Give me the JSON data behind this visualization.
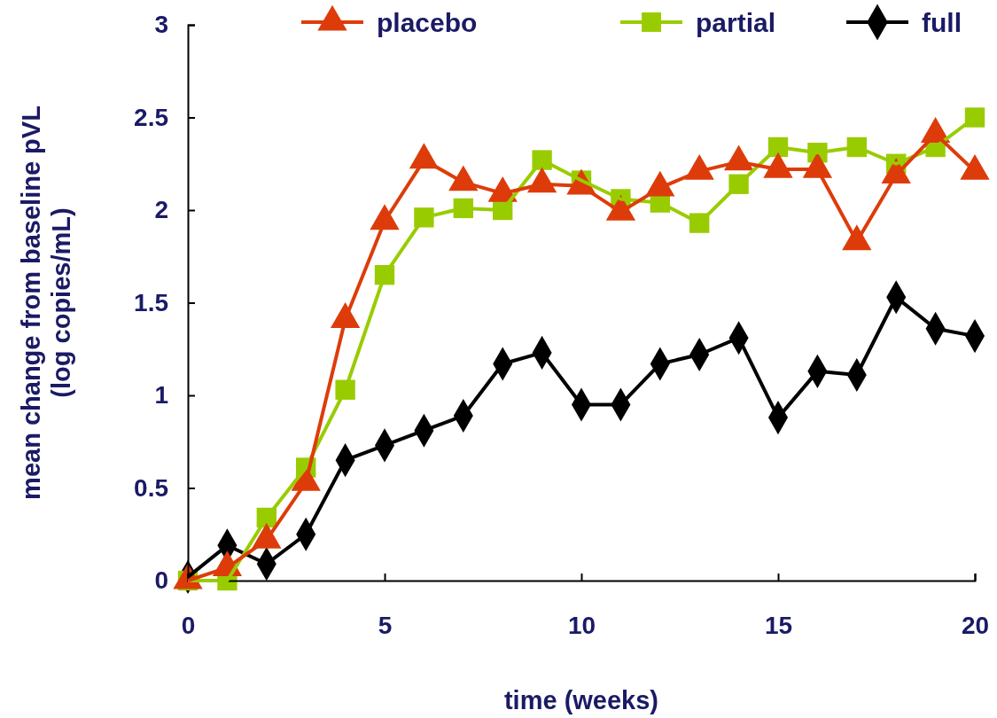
{
  "chart_data": {
    "type": "line",
    "xlabel": "time (weeks)",
    "ylabel": "mean change from baseline pVL\n(log copies/mL)",
    "x": [
      0,
      1,
      2,
      3,
      4,
      5,
      6,
      7,
      8,
      9,
      10,
      11,
      12,
      13,
      14,
      15,
      16,
      17,
      18,
      19,
      20
    ],
    "xlim": [
      0,
      20
    ],
    "xticks": [
      0,
      5,
      10,
      15,
      20
    ],
    "ylim": [
      0,
      3
    ],
    "yticks": [
      0,
      0.5,
      1,
      1.5,
      2,
      2.5,
      3
    ],
    "grid": false,
    "legend": "top",
    "line_style": "solid",
    "series": [
      {
        "name": "placebo",
        "color": "#dd3c0a",
        "marker": "triangle",
        "values": [
          0,
          0.07,
          0.22,
          0.53,
          1.41,
          1.94,
          2.27,
          2.15,
          2.09,
          2.14,
          2.13,
          1.99,
          2.12,
          2.21,
          2.26,
          2.22,
          2.22,
          1.83,
          2.19,
          2.41,
          2.21
        ]
      },
      {
        "name": "partial",
        "color": "#99cc00",
        "marker": "square",
        "values": [
          0,
          0,
          0.34,
          0.61,
          1.03,
          1.65,
          1.96,
          2.01,
          2,
          2.27,
          2.16,
          2.06,
          2.04,
          1.93,
          2.14,
          2.34,
          2.31,
          2.34,
          2.25,
          2.34,
          2.5
        ]
      },
      {
        "name": "full",
        "color": "#000000",
        "marker": "diamond",
        "values": [
          0.02,
          0.19,
          0.09,
          0.25,
          0.65,
          0.73,
          0.81,
          0.89,
          1.17,
          1.23,
          0.95,
          0.95,
          1.17,
          1.22,
          1.31,
          0.88,
          1.13,
          1.11,
          1.53,
          1.36,
          1.32
        ]
      }
    ]
  }
}
